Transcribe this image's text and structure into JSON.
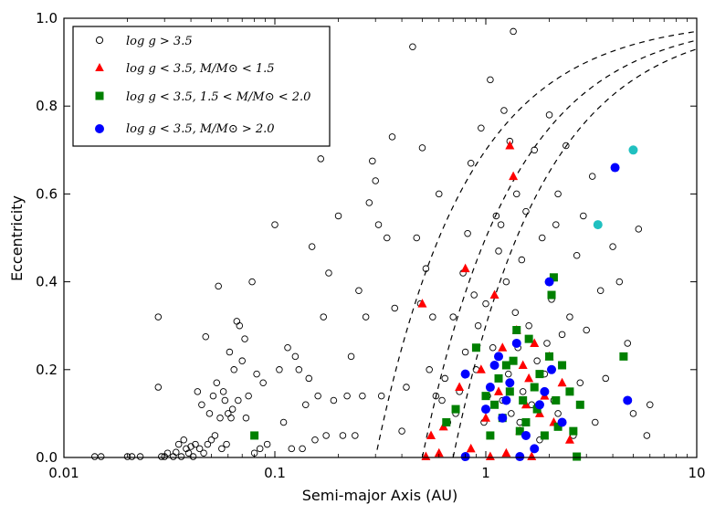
{
  "chart_data": {
    "type": "scatter",
    "xscale": "log",
    "xlim": [
      0.01,
      10
    ],
    "ylim": [
      0.0,
      1.0
    ],
    "xlabel": "Semi-major Axis (AU)",
    "ylabel": "Eccentricity",
    "x_ticks": [
      {
        "v": 0.01,
        "label": "0.01"
      },
      {
        "v": 0.1,
        "label": "0.1"
      },
      {
        "v": 1,
        "label": "1"
      },
      {
        "v": 10,
        "label": "10"
      }
    ],
    "y_ticks": [
      {
        "v": 0.0,
        "label": "0.0"
      },
      {
        "v": 0.2,
        "label": "0.2"
      },
      {
        "v": 0.4,
        "label": "0.4"
      },
      {
        "v": 0.6,
        "label": "0.6"
      },
      {
        "v": 0.8,
        "label": "0.8"
      },
      {
        "v": 1.0,
        "label": "1.0"
      }
    ],
    "legend": "top-left",
    "series": [
      {
        "name": "log g > 3.5",
        "marker": "open-circle",
        "color": "#000000",
        "points": [
          [
            0.014,
            0.002
          ],
          [
            0.015,
            0.002
          ],
          [
            0.02,
            0.002
          ],
          [
            0.021,
            0.002
          ],
          [
            0.023,
            0.002
          ],
          [
            0.028,
            0.32
          ],
          [
            0.028,
            0.16
          ],
          [
            0.029,
            0.002
          ],
          [
            0.03,
            0.002
          ],
          [
            0.031,
            0.01
          ],
          [
            0.033,
            0.002
          ],
          [
            0.034,
            0.012
          ],
          [
            0.035,
            0.03
          ],
          [
            0.036,
            0.002
          ],
          [
            0.037,
            0.04
          ],
          [
            0.038,
            0.02
          ],
          [
            0.039,
            0.01
          ],
          [
            0.04,
            0.025
          ],
          [
            0.041,
            0.002
          ],
          [
            0.042,
            0.03
          ],
          [
            0.043,
            0.15
          ],
          [
            0.044,
            0.02
          ],
          [
            0.045,
            0.12
          ],
          [
            0.046,
            0.01
          ],
          [
            0.047,
            0.275
          ],
          [
            0.048,
            0.03
          ],
          [
            0.049,
            0.1
          ],
          [
            0.05,
            0.04
          ],
          [
            0.051,
            0.14
          ],
          [
            0.052,
            0.05
          ],
          [
            0.053,
            0.17
          ],
          [
            0.054,
            0.39
          ],
          [
            0.055,
            0.09
          ],
          [
            0.056,
            0.02
          ],
          [
            0.057,
            0.15
          ],
          [
            0.058,
            0.13
          ],
          [
            0.059,
            0.03
          ],
          [
            0.06,
            0.1
          ],
          [
            0.061,
            0.24
          ],
          [
            0.062,
            0.09
          ],
          [
            0.063,
            0.11
          ],
          [
            0.064,
            0.2
          ],
          [
            0.066,
            0.31
          ],
          [
            0.067,
            0.13
          ],
          [
            0.068,
            0.3
          ],
          [
            0.07,
            0.22
          ],
          [
            0.072,
            0.27
          ],
          [
            0.073,
            0.09
          ],
          [
            0.075,
            0.14
          ],
          [
            0.078,
            0.4
          ],
          [
            0.08,
            0.01
          ],
          [
            0.082,
            0.19
          ],
          [
            0.085,
            0.02
          ],
          [
            0.088,
            0.17
          ],
          [
            0.092,
            0.03
          ],
          [
            0.1,
            0.53
          ],
          [
            0.105,
            0.2
          ],
          [
            0.11,
            0.08
          ],
          [
            0.115,
            0.25
          ],
          [
            0.12,
            0.02
          ],
          [
            0.125,
            0.23
          ],
          [
            0.13,
            0.2
          ],
          [
            0.135,
            0.02
          ],
          [
            0.14,
            0.12
          ],
          [
            0.145,
            0.18
          ],
          [
            0.15,
            0.48
          ],
          [
            0.155,
            0.04
          ],
          [
            0.16,
            0.14
          ],
          [
            0.165,
            0.68
          ],
          [
            0.17,
            0.32
          ],
          [
            0.175,
            0.05
          ],
          [
            0.18,
            0.42
          ],
          [
            0.19,
            0.13
          ],
          [
            0.2,
            0.55
          ],
          [
            0.21,
            0.05
          ],
          [
            0.22,
            0.14
          ],
          [
            0.23,
            0.23
          ],
          [
            0.24,
            0.05
          ],
          [
            0.25,
            0.38
          ],
          [
            0.26,
            0.14
          ],
          [
            0.27,
            0.32
          ],
          [
            0.28,
            0.58
          ],
          [
            0.29,
            0.675
          ],
          [
            0.3,
            0.63
          ],
          [
            0.31,
            0.53
          ],
          [
            0.32,
            0.14
          ],
          [
            0.34,
            0.5
          ],
          [
            0.36,
            0.73
          ],
          [
            0.37,
            0.34
          ],
          [
            0.4,
            0.06
          ],
          [
            0.42,
            0.16
          ],
          [
            0.45,
            0.935
          ],
          [
            0.47,
            0.5
          ],
          [
            0.49,
            0.35
          ],
          [
            0.5,
            0.705
          ],
          [
            0.52,
            0.43
          ],
          [
            0.54,
            0.2
          ],
          [
            0.56,
            0.32
          ],
          [
            0.58,
            0.14
          ],
          [
            0.6,
            0.6
          ],
          [
            0.62,
            0.13
          ],
          [
            0.64,
            0.18
          ],
          [
            0.66,
            0.08
          ],
          [
            0.7,
            0.32
          ],
          [
            0.72,
            0.1
          ],
          [
            0.75,
            0.15
          ],
          [
            0.78,
            0.42
          ],
          [
            0.8,
            0.24
          ],
          [
            0.82,
            0.51
          ],
          [
            0.85,
            0.67
          ],
          [
            0.88,
            0.37
          ],
          [
            0.9,
            0.2
          ],
          [
            0.92,
            0.3
          ],
          [
            0.95,
            0.75
          ],
          [
            0.98,
            0.08
          ],
          [
            1.0,
            0.35
          ],
          [
            1.02,
            0.14
          ],
          [
            1.05,
            0.86
          ],
          [
            1.08,
            0.25
          ],
          [
            1.1,
            0.21
          ],
          [
            1.12,
            0.55
          ],
          [
            1.15,
            0.47
          ],
          [
            1.18,
            0.53
          ],
          [
            1.2,
            0.13
          ],
          [
            1.22,
            0.79
          ],
          [
            1.25,
            0.4
          ],
          [
            1.28,
            0.19
          ],
          [
            1.3,
            0.72
          ],
          [
            1.32,
            0.1
          ],
          [
            1.35,
            0.97
          ],
          [
            1.38,
            0.33
          ],
          [
            1.4,
            0.6
          ],
          [
            1.42,
            0.25
          ],
          [
            1.45,
            0.08
          ],
          [
            1.48,
            0.45
          ],
          [
            1.5,
            0.15
          ],
          [
            1.55,
            0.56
          ],
          [
            1.6,
            0.3
          ],
          [
            1.65,
            0.12
          ],
          [
            1.7,
            0.7
          ],
          [
            1.75,
            0.22
          ],
          [
            1.8,
            0.04
          ],
          [
            1.85,
            0.5
          ],
          [
            1.9,
            0.19
          ],
          [
            1.95,
            0.26
          ],
          [
            2.0,
            0.78
          ],
          [
            2.05,
            0.36
          ],
          [
            2.1,
            0.13
          ],
          [
            2.15,
            0.53
          ],
          [
            2.2,
            0.1
          ],
          [
            2.3,
            0.28
          ],
          [
            2.4,
            0.71
          ],
          [
            2.5,
            0.32
          ],
          [
            2.6,
            0.05
          ],
          [
            2.7,
            0.46
          ],
          [
            2.8,
            0.17
          ],
          [
            2.9,
            0.55
          ],
          [
            3.0,
            0.29
          ],
          [
            3.2,
            0.64
          ],
          [
            3.3,
            0.08
          ],
          [
            3.5,
            0.38
          ],
          [
            3.7,
            0.18
          ],
          [
            4.0,
            0.48
          ],
          [
            4.3,
            0.4
          ],
          [
            4.7,
            0.26
          ],
          [
            5.0,
            0.1
          ],
          [
            5.3,
            0.52
          ],
          [
            5.8,
            0.05
          ],
          [
            6.0,
            0.12
          ],
          [
            2.2,
            0.6
          ]
        ]
      },
      {
        "name": "log g < 3.5, M/M⊙ < 1.5",
        "marker": "triangle",
        "color": "#ff0000",
        "points": [
          [
            0.5,
            0.35
          ],
          [
            0.52,
            0.002
          ],
          [
            0.55,
            0.05
          ],
          [
            0.6,
            0.01
          ],
          [
            0.63,
            0.07
          ],
          [
            0.75,
            0.16
          ],
          [
            0.8,
            0.43
          ],
          [
            0.85,
            0.02
          ],
          [
            0.95,
            0.2
          ],
          [
            1.0,
            0.09
          ],
          [
            1.05,
            0.002
          ],
          [
            1.1,
            0.37
          ],
          [
            1.15,
            0.15
          ],
          [
            1.2,
            0.25
          ],
          [
            1.25,
            0.01
          ],
          [
            1.3,
            0.71
          ],
          [
            1.35,
            0.64
          ],
          [
            1.4,
            0.29
          ],
          [
            1.45,
            0.06
          ],
          [
            1.5,
            0.21
          ],
          [
            1.55,
            0.12
          ],
          [
            1.6,
            0.18
          ],
          [
            1.65,
            0.002
          ],
          [
            1.7,
            0.26
          ],
          [
            1.8,
            0.1
          ],
          [
            1.9,
            0.14
          ],
          [
            2.0,
            0.23
          ],
          [
            2.1,
            0.08
          ],
          [
            2.3,
            0.17
          ],
          [
            2.5,
            0.04
          ]
        ]
      },
      {
        "name": "log g < 3.5, 1.5 < M/M⊙ < 2.0",
        "marker": "square",
        "color": "#008000",
        "points": [
          [
            0.08,
            0.05
          ],
          [
            0.65,
            0.08
          ],
          [
            0.72,
            0.11
          ],
          [
            0.9,
            0.25
          ],
          [
            1.0,
            0.14
          ],
          [
            1.05,
            0.05
          ],
          [
            1.1,
            0.12
          ],
          [
            1.15,
            0.18
          ],
          [
            1.2,
            0.09
          ],
          [
            1.25,
            0.21
          ],
          [
            1.3,
            0.15
          ],
          [
            1.35,
            0.22
          ],
          [
            1.4,
            0.29
          ],
          [
            1.45,
            0.06
          ],
          [
            1.5,
            0.13
          ],
          [
            1.55,
            0.08
          ],
          [
            1.6,
            0.27
          ],
          [
            1.7,
            0.16
          ],
          [
            1.75,
            0.11
          ],
          [
            1.8,
            0.19
          ],
          [
            1.9,
            0.05
          ],
          [
            2.0,
            0.23
          ],
          [
            2.05,
            0.37
          ],
          [
            2.1,
            0.41
          ],
          [
            2.15,
            0.13
          ],
          [
            2.2,
            0.07
          ],
          [
            2.3,
            0.21
          ],
          [
            2.5,
            0.15
          ],
          [
            2.6,
            0.06
          ],
          [
            2.7,
            0.002
          ],
          [
            4.5,
            0.23
          ],
          [
            2.8,
            0.12
          ]
        ]
      },
      {
        "name": "log g < 3.5, M/M⊙ > 2.0",
        "marker": "filled-circle",
        "color": "#0000ff",
        "points": [
          [
            0.8,
            0.19
          ],
          [
            0.8,
            0.002
          ],
          [
            1.0,
            0.11
          ],
          [
            1.05,
            0.16
          ],
          [
            1.1,
            0.21
          ],
          [
            1.15,
            0.23
          ],
          [
            1.25,
            0.13
          ],
          [
            1.3,
            0.17
          ],
          [
            1.4,
            0.26
          ],
          [
            1.45,
            0.002
          ],
          [
            1.55,
            0.05
          ],
          [
            1.7,
            0.02
          ],
          [
            1.8,
            0.12
          ],
          [
            1.9,
            0.15
          ],
          [
            2.0,
            0.4
          ],
          [
            2.3,
            0.08
          ],
          [
            3.4,
            0.53
          ],
          [
            4.1,
            0.66
          ],
          [
            5.0,
            0.7
          ],
          [
            4.7,
            0.13
          ],
          [
            1.2,
            0.09
          ],
          [
            2.05,
            0.2
          ]
        ]
      }
    ]
  },
  "legend_items": [
    {
      "label": "log g > 3.5"
    },
    {
      "label": "log g < 3.5, M/M⊙ < 1.5"
    },
    {
      "label": "log g < 3.5, 1.5 < M/M⊙ < 2.0"
    },
    {
      "label": "log g < 3.5, M/M⊙ > 2.0"
    }
  ]
}
